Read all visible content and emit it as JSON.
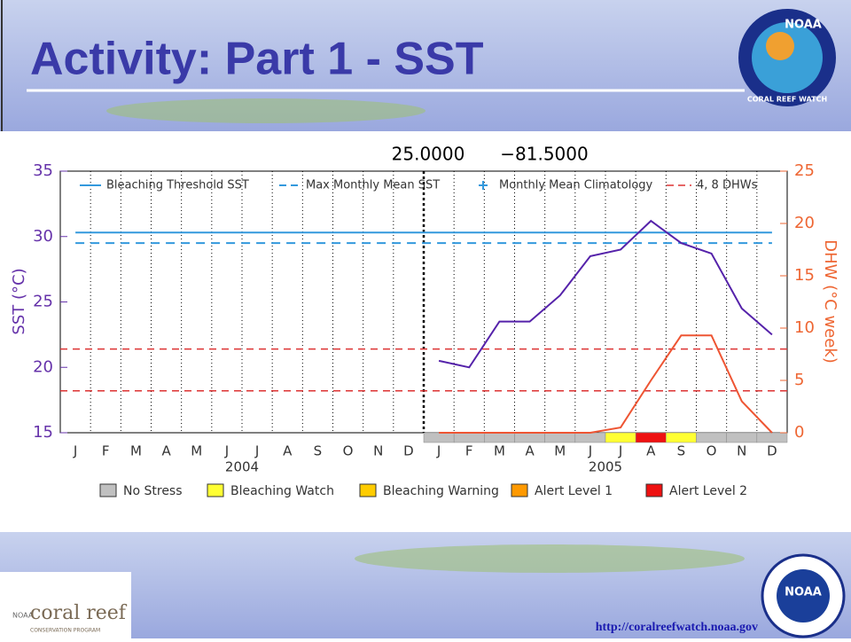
{
  "slide": {
    "title": "Activity: Part 1 - SST",
    "url": "http://coralreefwatch.noaa.gov",
    "logos": {
      "top_right": [
        "NOAA",
        "CORAL REEF WATCH"
      ],
      "bottom_left": [
        "NOAA",
        "coral reef",
        "CONSERVATION PROGRAM"
      ],
      "bottom_right": "NOAA"
    }
  },
  "chart_data": {
    "type": "line",
    "header": [
      "25.0000",
      "−81.5000"
    ],
    "ylabel": "SST (°C)",
    "y2label": "DHW (°C week)",
    "ylim": [
      15,
      35
    ],
    "yticks": [
      15,
      20,
      25,
      30,
      35
    ],
    "y2lim": [
      0,
      25
    ],
    "y2ticks": [
      0,
      5,
      10,
      15,
      20,
      25
    ],
    "categories": [
      "J",
      "F",
      "M",
      "A",
      "M",
      "J",
      "J",
      "A",
      "S",
      "O",
      "N",
      "D",
      "J",
      "F",
      "M",
      "A",
      "M",
      "J",
      "J",
      "A",
      "S",
      "O",
      "N",
      "D"
    ],
    "years": [
      "2004",
      "2005"
    ],
    "grid": true,
    "series": [
      {
        "name": "Bleaching Threshold SST",
        "color": "#3399dd",
        "dash": "solid",
        "values": [
          30.3,
          30.3,
          30.3,
          30.3,
          30.3,
          30.3,
          30.3,
          30.3,
          30.3,
          30.3,
          30.3,
          30.3,
          30.3,
          30.3,
          30.3,
          30.3,
          30.3,
          30.3,
          30.3,
          30.3,
          30.3,
          30.3,
          30.3,
          30.3
        ]
      },
      {
        "name": "Max Monthly Mean SST",
        "color": "#3399dd",
        "dash": "dashed",
        "values": [
          29.5,
          29.5,
          29.5,
          29.5,
          29.5,
          29.5,
          29.5,
          29.5,
          29.5,
          29.5,
          29.5,
          29.5,
          29.5,
          29.5,
          29.5,
          29.5,
          29.5,
          29.5,
          29.5,
          29.5,
          29.5,
          29.5,
          29.5,
          29.5
        ]
      },
      {
        "name": "Monthly Mean Climatology",
        "color": "#3399dd",
        "dash": "plus",
        "values": [
          null,
          null,
          null,
          null,
          null,
          null,
          null,
          null,
          null,
          null,
          null,
          null,
          null,
          null,
          null,
          null,
          null,
          null,
          null,
          null,
          null,
          null,
          null,
          null
        ]
      },
      {
        "name": "SST",
        "color": "#5522aa",
        "dash": "solid",
        "values": [
          null,
          null,
          null,
          null,
          null,
          null,
          null,
          null,
          null,
          null,
          null,
          null,
          20.5,
          20,
          23.5,
          23.5,
          25.5,
          28.5,
          29,
          31.2,
          29.5,
          28.7,
          24.5,
          22.5
        ]
      },
      {
        "name": "DHW",
        "color": "#ee5533",
        "dash": "solid",
        "axis": "y2",
        "values": [
          null,
          null,
          null,
          null,
          null,
          null,
          null,
          null,
          null,
          null,
          null,
          null,
          0,
          0,
          0,
          0,
          0,
          0,
          0.5,
          5,
          9.3,
          9.3,
          3,
          0
        ]
      }
    ],
    "dhw_lines": {
      "name": "4, 8 DHWs",
      "color": "#dd3333",
      "values": [
        4,
        8
      ]
    },
    "stress_legend": [
      {
        "name": "No Stress",
        "color": "#c0c0c0"
      },
      {
        "name": "Bleaching Watch",
        "color": "#ffff33"
      },
      {
        "name": "Bleaching Warning",
        "color": "#ffcc00"
      },
      {
        "name": "Alert Level 1",
        "color": "#ff9900"
      },
      {
        "name": "Alert Level 2",
        "color": "#ee1111"
      }
    ],
    "stress": [
      null,
      null,
      null,
      null,
      null,
      null,
      null,
      null,
      null,
      null,
      null,
      null,
      0,
      0,
      0,
      0,
      0,
      0,
      1,
      4,
      1,
      0,
      0,
      0
    ]
  }
}
